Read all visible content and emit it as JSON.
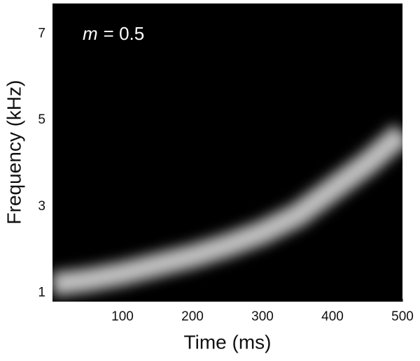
{
  "chart_data": {
    "type": "spectrogram",
    "annotation_parts": [
      "m",
      "= 0.5"
    ],
    "x_label": "Time (ms)",
    "y_label": "Frequency (kHz)",
    "x": [
      0,
      50,
      100,
      150,
      200,
      250,
      300,
      350,
      400,
      450,
      500
    ],
    "values": [
      1.2,
      1.3,
      1.45,
      1.65,
      1.85,
      2.1,
      2.4,
      2.8,
      3.4,
      4.0,
      4.7
    ],
    "color": "#ffffff",
    "background": "#000000",
    "xlim": [
      0,
      500
    ],
    "xticks": [
      100,
      200,
      300,
      400,
      500
    ],
    "ylim": [
      0.8,
      7.7
    ],
    "yticks": [
      1,
      3,
      5,
      7
    ],
    "grid": false
  }
}
